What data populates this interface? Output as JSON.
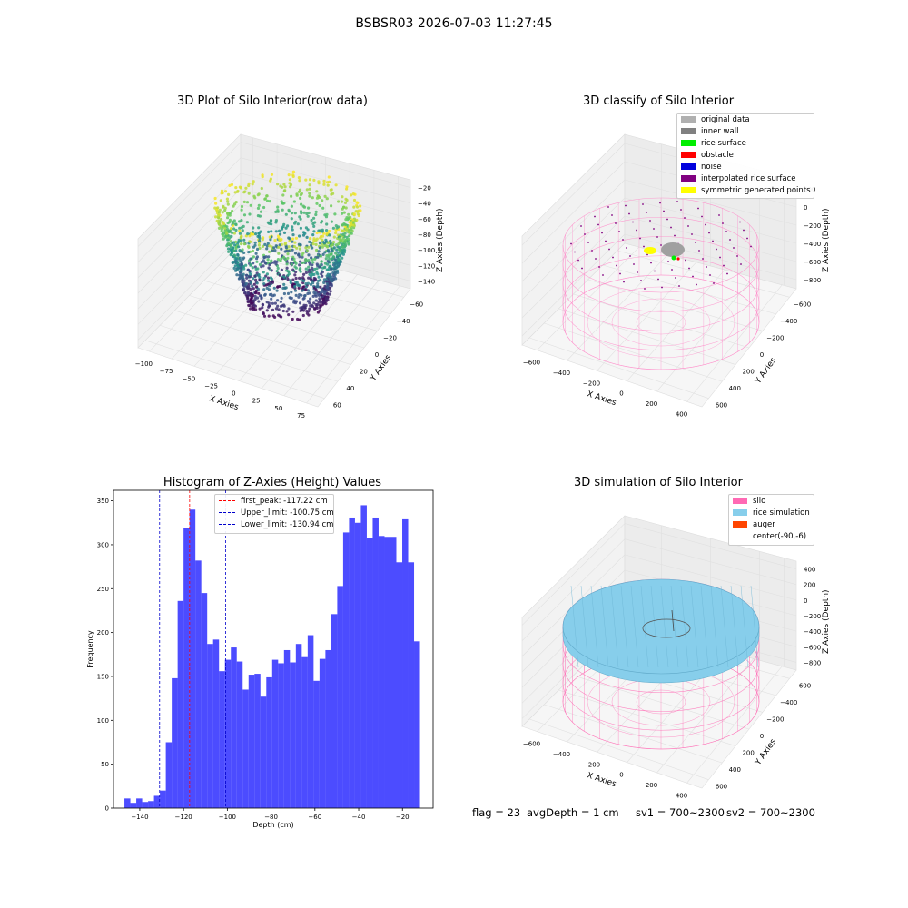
{
  "figure": {
    "suptitle": "BSBSR03 2026-07-03 11:27:45",
    "status": {
      "flag": "flag = 23",
      "avg_depth": "avgDepth = 1 cm",
      "sv1": "sv1 = 700~2300",
      "sv2": "sv2 = 700~2300"
    }
  },
  "chart_data": [
    {
      "type": "scatter",
      "title": "3D Plot of Silo Interior(row data)",
      "xlabel": "X Axies",
      "ylabel": "Y Axies",
      "zlabel": "Z Axies (Depth)",
      "x_ticks": [
        "−100",
        "−75",
        "−50",
        "−25",
        "0",
        "25",
        "50",
        "75"
      ],
      "y_ticks": [
        "−60",
        "−40",
        "−20",
        "0",
        "20",
        "40",
        "60"
      ],
      "z_ticks": [
        "−140",
        "−120",
        "−100",
        "−80",
        "−60",
        "−40",
        "−20"
      ],
      "colormap": "viridis",
      "description_points": "point cloud of silo rim and interior wall, depth from about -150 to -10"
    },
    {
      "type": "scatter",
      "title": "3D classify of Silo Interior",
      "xlabel": "X Axies",
      "ylabel": "Y Axies",
      "zlabel": "Z Axies (Depth)",
      "x_ticks": [
        "−600",
        "−400",
        "−200",
        "0",
        "200",
        "400"
      ],
      "y_ticks": [
        "−600",
        "−400",
        "−200",
        "0",
        "200",
        "400",
        "600"
      ],
      "z_ticks": [
        "−800",
        "−600",
        "−400",
        "−200",
        "0",
        "200"
      ],
      "legend": [
        {
          "label": "original data",
          "color": "#b0b0b0"
        },
        {
          "label": "inner wall",
          "color": "#808080"
        },
        {
          "label": "rice surface",
          "color": "#00ee00"
        },
        {
          "label": "obstacle",
          "color": "#ff0000"
        },
        {
          "label": "noise",
          "color": "#0000dd"
        },
        {
          "label": "interpolated rice surface",
          "color": "#800080"
        },
        {
          "label": "symmetric generated points",
          "color": "#ffff00"
        }
      ]
    },
    {
      "type": "bar",
      "title": "Histogram of Z-Axies (Height) Values",
      "xlabel": "Depth (cm)",
      "ylabel": "Frequency",
      "xlim": [
        -152,
        -6
      ],
      "ylim": [
        0,
        362
      ],
      "bin_start": -147.0,
      "bin_width": 2.7,
      "values": [
        11,
        6,
        11,
        7,
        8,
        14,
        20,
        75,
        148,
        236,
        319,
        340,
        282,
        245,
        187,
        192,
        156,
        169,
        183,
        167,
        135,
        152,
        153,
        127,
        149,
        169,
        165,
        180,
        166,
        187,
        172,
        197,
        145,
        170,
        180,
        221,
        253,
        314,
        331,
        325,
        345,
        308,
        331,
        310,
        309,
        309,
        280,
        329,
        280,
        190
      ],
      "bar_color": "#0000ff",
      "x_ticks": [
        -140,
        -120,
        -100,
        -80,
        -60,
        -40,
        -20
      ],
      "y_ticks": [
        0,
        50,
        100,
        150,
        200,
        250,
        300,
        350
      ],
      "vlines": [
        {
          "label": "first_peak: -117.22 cm",
          "x": -117.22,
          "color": "#ff0000"
        },
        {
          "label": "Upper_limit: -100.75 cm",
          "x": -100.75,
          "color": "#0000cc"
        },
        {
          "label": "Lower_limit: -130.94 cm",
          "x": -130.94,
          "color": "#0000cc"
        }
      ]
    },
    {
      "type": "scatter",
      "title": "3D simulation of Silo Interior",
      "xlabel": "X Axies",
      "ylabel": "Y Axies",
      "zlabel": "Z Axies (Depth)",
      "x_ticks": [
        "−600",
        "−400",
        "−200",
        "0",
        "200",
        "400"
      ],
      "y_ticks": [
        "−600",
        "−400",
        "−200",
        "0",
        "200",
        "400",
        "600"
      ],
      "z_ticks": [
        "−800",
        "−600",
        "−400",
        "−200",
        "0",
        "200",
        "400"
      ],
      "legend": [
        {
          "label": "silo",
          "color": "#ff69b4"
        },
        {
          "label": "rice simulation",
          "color": "#87ceeb"
        },
        {
          "label": "auger",
          "color": "#ff4500"
        },
        {
          "label": "center(-90,-6)",
          "color": ""
        }
      ]
    }
  ]
}
